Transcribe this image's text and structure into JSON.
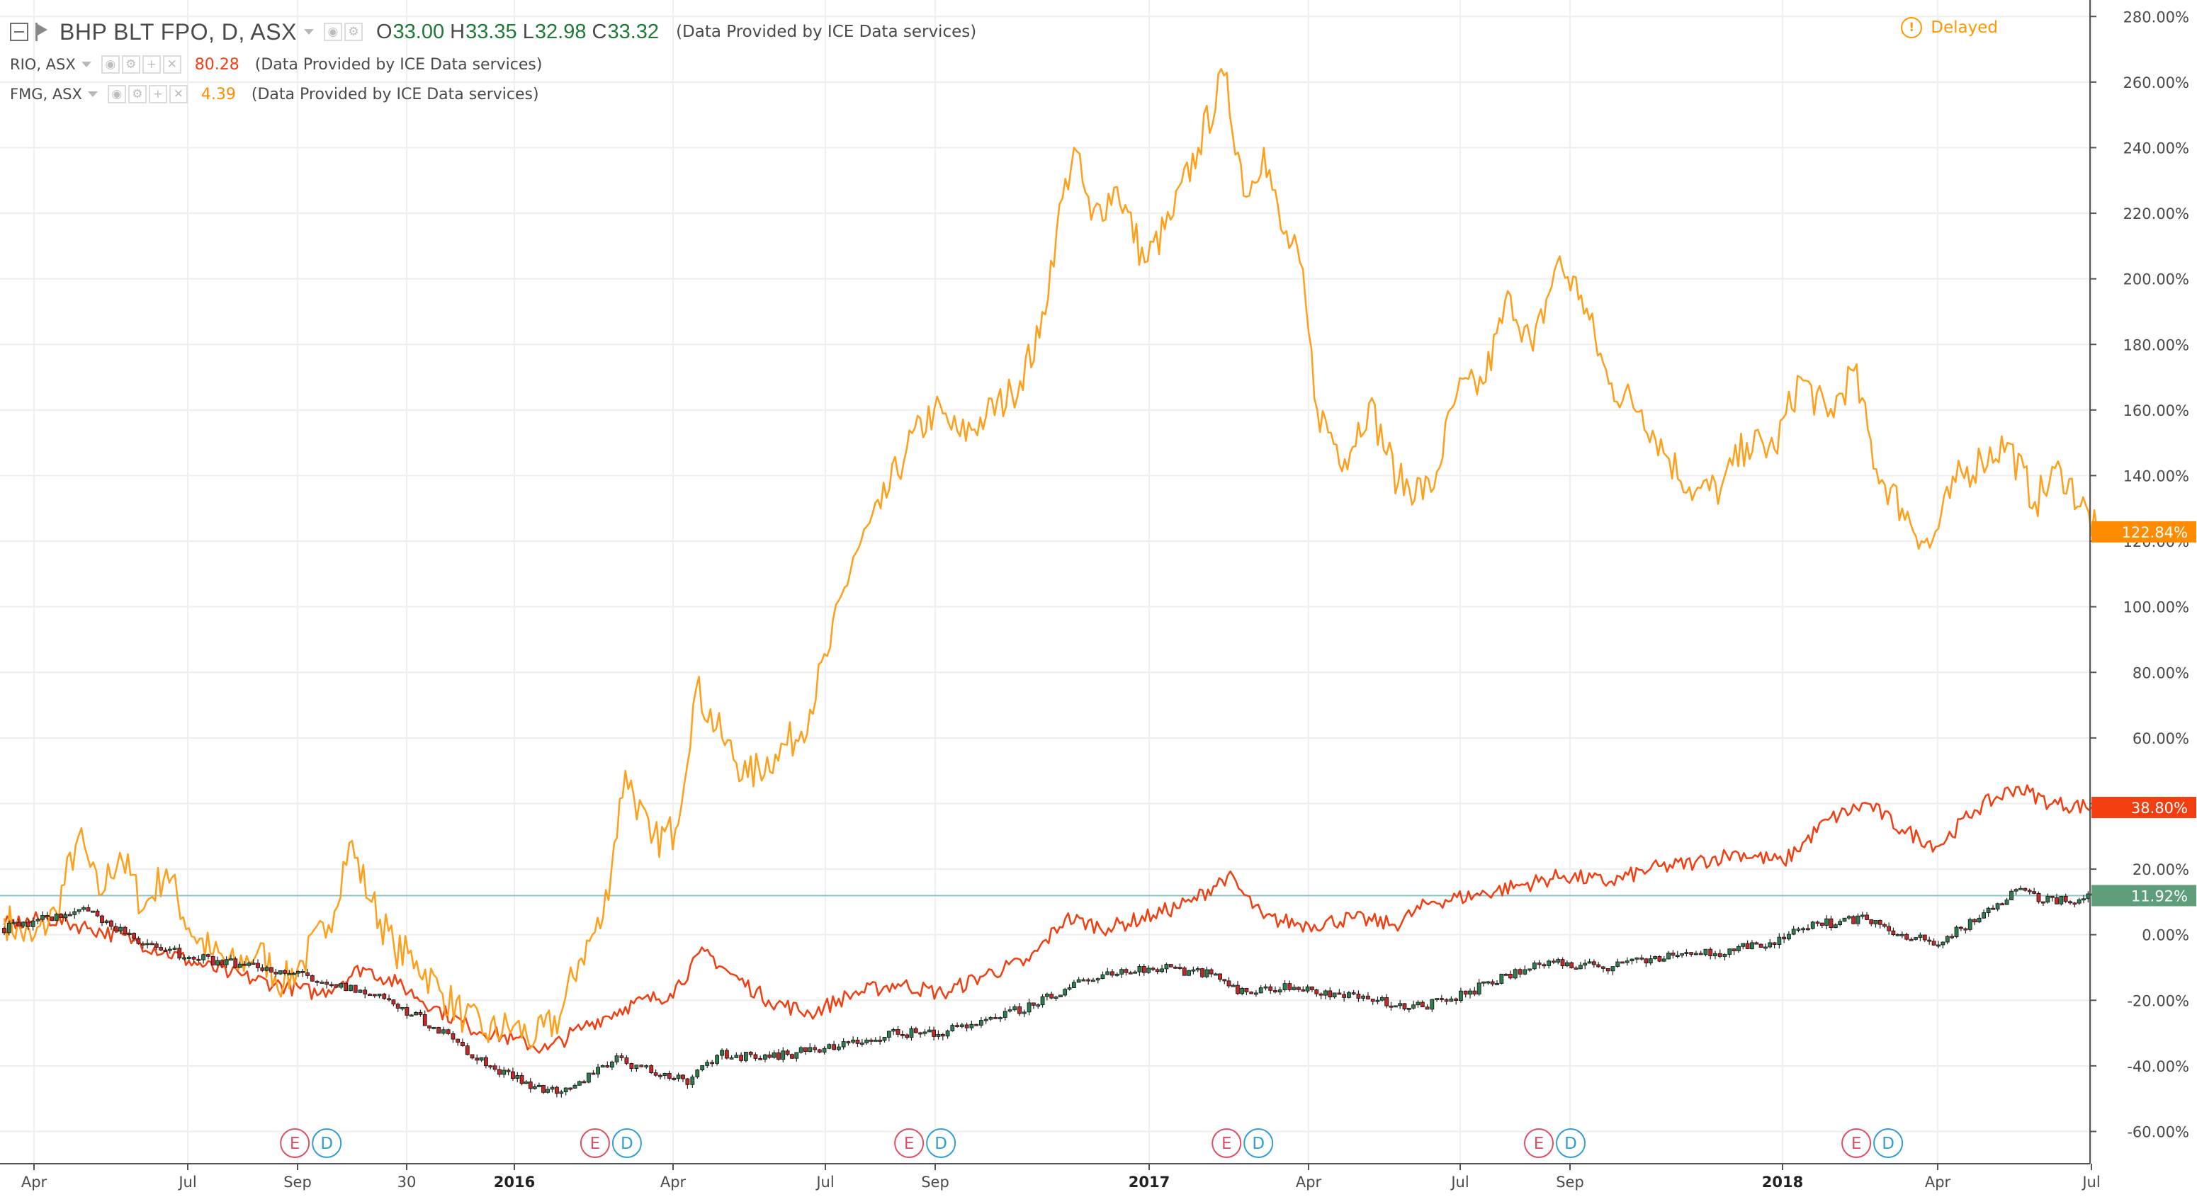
{
  "header": {
    "symbol": "BHP BLT FPO, D, ASX",
    "open_label": "O",
    "open": "33.00",
    "high_label": "H",
    "high": "33.35",
    "low_label": "L",
    "low": "32.98",
    "close_label": "C",
    "close": "33.32",
    "provider": "(Data Provided by ICE Data services)",
    "delayed": "Delayed"
  },
  "comparisons": [
    {
      "symbol": "RIO, ASX",
      "value": "80.28",
      "provider": "(Data Provided by ICE Data services)",
      "color": "#f23e10"
    },
    {
      "symbol": "FMG, ASX",
      "value": "4.39",
      "provider": "(Data Provided by ICE Data services)",
      "color": "#ff8c00"
    }
  ],
  "chart_data": {
    "type": "line",
    "title": "BHP BLT FPO, D, ASX",
    "y_unit": "%",
    "ylim": [
      -64,
      282
    ],
    "y_ticks": [
      "280.00%",
      "260.00%",
      "240.00%",
      "220.00%",
      "200.00%",
      "180.00%",
      "160.00%",
      "140.00%",
      "120.00%",
      "100.00%",
      "80.00%",
      "60.00%",
      "40.00%",
      "20.00%",
      "0.00%",
      "-20.00%",
      "-40.00%",
      "-60.00%"
    ],
    "x_ticks": [
      "Apr",
      "Jul",
      "Sep",
      "30",
      "2016",
      "Apr",
      "Jul",
      "Sep",
      "2017",
      "Apr",
      "Jul",
      "Sep",
      "2018",
      "Apr",
      "Jul"
    ],
    "x_tick_bold": [
      "2016",
      "2017",
      "2018"
    ],
    "x_start": "2015-03-16",
    "x_end": "2018-07-11",
    "grid": true,
    "series": [
      {
        "name": "FMG, ASX",
        "color": "#ff9f1a",
        "last_label": "122.84%",
        "points": [
          [
            "2015-03-16",
            5
          ],
          [
            "2015-04-01",
            -2
          ],
          [
            "2015-04-15",
            7
          ],
          [
            "2015-04-28",
            30
          ],
          [
            "2015-05-10",
            12
          ],
          [
            "2015-05-22",
            25
          ],
          [
            "2015-06-05",
            8
          ],
          [
            "2015-06-18",
            20
          ],
          [
            "2015-07-01",
            2
          ],
          [
            "2015-07-15",
            -6
          ],
          [
            "2015-07-28",
            -10
          ],
          [
            "2015-08-10",
            -5
          ],
          [
            "2015-08-25",
            -15
          ],
          [
            "2015-09-05",
            -8
          ],
          [
            "2015-09-20",
            3
          ],
          [
            "2015-10-02",
            28
          ],
          [
            "2015-10-15",
            10
          ],
          [
            "2015-10-28",
            -4
          ],
          [
            "2015-11-10",
            -8
          ],
          [
            "2015-11-25",
            -18
          ],
          [
            "2015-12-08",
            -25
          ],
          [
            "2015-12-20",
            -30
          ],
          [
            "2016-01-05",
            -28
          ],
          [
            "2016-01-18",
            -32
          ],
          [
            "2016-02-01",
            -25
          ],
          [
            "2016-02-12",
            -8
          ],
          [
            "2016-02-26",
            5
          ],
          [
            "2016-03-10",
            50
          ],
          [
            "2016-03-25",
            28
          ],
          [
            "2016-04-08",
            32
          ],
          [
            "2016-04-20",
            75
          ],
          [
            "2016-05-05",
            60
          ],
          [
            "2016-05-20",
            48
          ],
          [
            "2016-06-05",
            55
          ],
          [
            "2016-06-20",
            62
          ],
          [
            "2016-07-05",
            85
          ],
          [
            "2016-07-20",
            115
          ],
          [
            "2016-08-05",
            130
          ],
          [
            "2016-08-20",
            148
          ],
          [
            "2016-09-05",
            160
          ],
          [
            "2016-09-20",
            152
          ],
          [
            "2016-10-05",
            158
          ],
          [
            "2016-10-20",
            165
          ],
          [
            "2016-11-05",
            182
          ],
          [
            "2016-11-15",
            215
          ],
          [
            "2016-11-25",
            240
          ],
          [
            "2016-12-05",
            218
          ],
          [
            "2016-12-20",
            228
          ],
          [
            "2017-01-05",
            205
          ],
          [
            "2017-01-20",
            218
          ],
          [
            "2017-02-05",
            240
          ],
          [
            "2017-02-20",
            262
          ],
          [
            "2017-03-05",
            225
          ],
          [
            "2017-03-15",
            240
          ],
          [
            "2017-03-25",
            215
          ],
          [
            "2017-04-05",
            205
          ],
          [
            "2017-04-15",
            160
          ],
          [
            "2017-05-01",
            145
          ],
          [
            "2017-05-15",
            162
          ],
          [
            "2017-06-01",
            138
          ],
          [
            "2017-06-20",
            135
          ],
          [
            "2017-07-05",
            165
          ],
          [
            "2017-07-20",
            168
          ],
          [
            "2017-08-05",
            195
          ],
          [
            "2017-08-18",
            178
          ],
          [
            "2017-09-01",
            205
          ],
          [
            "2017-09-15",
            195
          ],
          [
            "2017-10-01",
            168
          ],
          [
            "2017-10-20",
            160
          ],
          [
            "2017-11-05",
            145
          ],
          [
            "2017-11-20",
            135
          ],
          [
            "2017-12-05",
            136
          ],
          [
            "2017-12-20",
            150
          ],
          [
            "2018-01-05",
            148
          ],
          [
            "2018-01-20",
            170
          ],
          [
            "2018-02-05",
            158
          ],
          [
            "2018-02-20",
            172
          ],
          [
            "2018-03-05",
            142
          ],
          [
            "2018-03-20",
            130
          ],
          [
            "2018-04-05",
            118
          ],
          [
            "2018-04-20",
            138
          ],
          [
            "2018-05-05",
            145
          ],
          [
            "2018-05-20",
            150
          ],
          [
            "2018-06-05",
            132
          ],
          [
            "2018-06-20",
            142
          ],
          [
            "2018-07-11",
            122.84
          ]
        ]
      },
      {
        "name": "RIO, ASX",
        "color": "#f23e10",
        "last_label": "38.80%",
        "points": [
          [
            "2015-03-16",
            3
          ],
          [
            "2015-04-10",
            5
          ],
          [
            "2015-05-05",
            2
          ],
          [
            "2015-06-01",
            -2
          ],
          [
            "2015-07-01",
            -8
          ],
          [
            "2015-07-25",
            -12
          ],
          [
            "2015-08-20",
            -15
          ],
          [
            "2015-09-15",
            -18
          ],
          [
            "2015-10-10",
            -10
          ],
          [
            "2015-10-30",
            -15
          ],
          [
            "2015-11-20",
            -22
          ],
          [
            "2015-12-10",
            -28
          ],
          [
            "2016-01-05",
            -32
          ],
          [
            "2016-01-25",
            -35
          ],
          [
            "2016-02-15",
            -28
          ],
          [
            "2016-03-10",
            -22
          ],
          [
            "2016-04-05",
            -18
          ],
          [
            "2016-04-25",
            -5
          ],
          [
            "2016-05-10",
            -12
          ],
          [
            "2016-06-01",
            -20
          ],
          [
            "2016-06-25",
            -24
          ],
          [
            "2016-07-20",
            -18
          ],
          [
            "2016-08-15",
            -15
          ],
          [
            "2016-09-10",
            -18
          ],
          [
            "2016-10-05",
            -12
          ],
          [
            "2016-10-30",
            -8
          ],
          [
            "2016-11-20",
            5
          ],
          [
            "2016-12-15",
            2
          ],
          [
            "2017-01-10",
            6
          ],
          [
            "2017-02-01",
            10
          ],
          [
            "2017-02-22",
            18
          ],
          [
            "2017-03-15",
            5
          ],
          [
            "2017-04-10",
            3
          ],
          [
            "2017-05-05",
            5
          ],
          [
            "2017-05-30",
            3
          ],
          [
            "2017-06-20",
            10
          ],
          [
            "2017-07-15",
            12
          ],
          [
            "2017-08-10",
            15
          ],
          [
            "2017-09-05",
            18
          ],
          [
            "2017-10-01",
            16
          ],
          [
            "2017-10-25",
            20
          ],
          [
            "2017-11-20",
            22
          ],
          [
            "2017-12-15",
            25
          ],
          [
            "2018-01-10",
            22
          ],
          [
            "2018-02-05",
            35
          ],
          [
            "2018-02-28",
            40
          ],
          [
            "2018-03-20",
            32
          ],
          [
            "2018-04-10",
            27
          ],
          [
            "2018-05-01",
            38
          ],
          [
            "2018-05-25",
            45
          ],
          [
            "2018-06-15",
            40
          ],
          [
            "2018-07-11",
            38.8
          ]
        ]
      },
      {
        "name": "BHP BLT FPO, D, ASX",
        "color": "#2e7d4f",
        "last_label": "11.92%",
        "points": [
          [
            "2015-03-16",
            2
          ],
          [
            "2015-04-10",
            5
          ],
          [
            "2015-05-01",
            8
          ],
          [
            "2015-05-25",
            0
          ],
          [
            "2015-06-20",
            -5
          ],
          [
            "2015-07-15",
            -8
          ],
          [
            "2015-08-10",
            -10
          ],
          [
            "2015-09-05",
            -12
          ],
          [
            "2015-09-30",
            -16
          ],
          [
            "2015-10-25",
            -20
          ],
          [
            "2015-11-20",
            -28
          ],
          [
            "2015-12-15",
            -38
          ],
          [
            "2016-01-10",
            -45
          ],
          [
            "2016-01-25",
            -48
          ],
          [
            "2016-02-15",
            -44
          ],
          [
            "2016-03-05",
            -38
          ],
          [
            "2016-03-25",
            -42
          ],
          [
            "2016-04-15",
            -45
          ],
          [
            "2016-05-05",
            -36
          ],
          [
            "2016-05-30",
            -38
          ],
          [
            "2016-06-25",
            -35
          ],
          [
            "2016-07-20",
            -33
          ],
          [
            "2016-08-15",
            -30
          ],
          [
            "2016-09-10",
            -30
          ],
          [
            "2016-10-05",
            -25
          ],
          [
            "2016-10-30",
            -22
          ],
          [
            "2016-11-25",
            -15
          ],
          [
            "2016-12-20",
            -12
          ],
          [
            "2017-01-15",
            -10
          ],
          [
            "2017-02-10",
            -12
          ],
          [
            "2017-03-05",
            -18
          ],
          [
            "2017-03-30",
            -16
          ],
          [
            "2017-04-25",
            -18
          ],
          [
            "2017-05-20",
            -20
          ],
          [
            "2017-06-15",
            -22
          ],
          [
            "2017-07-10",
            -18
          ],
          [
            "2017-08-05",
            -12
          ],
          [
            "2017-08-30",
            -8
          ],
          [
            "2017-09-25",
            -10
          ],
          [
            "2017-10-20",
            -8
          ],
          [
            "2017-11-15",
            -6
          ],
          [
            "2017-12-10",
            -5
          ],
          [
            "2018-01-05",
            -2
          ],
          [
            "2018-01-30",
            3
          ],
          [
            "2018-02-25",
            5
          ],
          [
            "2018-03-20",
            0
          ],
          [
            "2018-04-10",
            -3
          ],
          [
            "2018-05-01",
            5
          ],
          [
            "2018-05-25",
            13
          ],
          [
            "2018-06-15",
            10
          ],
          [
            "2018-07-11",
            11.92
          ]
        ]
      }
    ],
    "events": [
      {
        "date": "2015-09-07",
        "labels": [
          "E",
          "D"
        ]
      },
      {
        "date": "2016-02-28",
        "labels": [
          "E",
          "D"
        ]
      },
      {
        "date": "2016-08-28",
        "labels": [
          "E",
          "D"
        ]
      },
      {
        "date": "2017-02-28",
        "labels": [
          "E",
          "D"
        ]
      },
      {
        "date": "2017-08-28",
        "labels": [
          "E",
          "D"
        ]
      },
      {
        "date": "2018-02-28",
        "labels": [
          "E",
          "D"
        ]
      }
    ]
  }
}
